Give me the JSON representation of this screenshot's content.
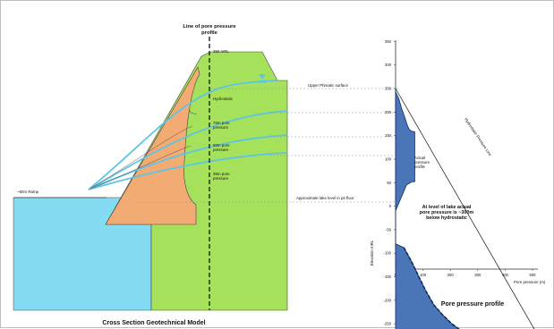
{
  "cross_section": {
    "title": "Cross Section Geotechnical Model",
    "line_label_1": "Line of pore pressure",
    "line_label_2": "profile",
    "crest_level": "350 mRL",
    "ramp": "~60m Ramp",
    "upper_phreatic": "Upper Phreatic surface",
    "lake_level": "Approximate lake level in pit floor",
    "zones": [
      "Hydrostatic",
      "70m pore",
      "pressure",
      "50m pore",
      "pressure",
      "35m pore",
      "pressure"
    ]
  },
  "profile": {
    "title": "Pore pressure profile",
    "xlabel": "Pore pressure (m)",
    "ylabel": "Elevation mRL",
    "hydrostatic_line": "Hydrostatic Pressure Line",
    "actual_label": [
      "Actual",
      "pressure",
      "profile"
    ],
    "lake_note": [
      "At level of lake actual",
      "pore pressure is ~300m",
      "below hydrostatic"
    ]
  },
  "chart_data": {
    "type": "area",
    "title": "Pore pressure profile",
    "xlabel": "Pore pressure (m)",
    "ylabel": "Elevation mRL",
    "xlim": [
      0,
      500
    ],
    "ylim": [
      -275,
      375
    ],
    "x_ticks": [
      0,
      100,
      200,
      300,
      400,
      500
    ],
    "y_ticks": [
      350,
      300,
      250,
      200,
      150,
      100,
      50,
      0,
      -50,
      -100,
      -150,
      -200,
      -250
    ],
    "series": [
      {
        "name": "Actual pressure profile",
        "points": [
          [
            0,
            250
          ],
          [
            0,
            243
          ],
          [
            12,
            228
          ],
          [
            22,
            208
          ],
          [
            34,
            188
          ],
          [
            42,
            173
          ],
          [
            48,
            165
          ],
          [
            55,
            160
          ],
          [
            70,
            158
          ],
          [
            70,
            52
          ],
          [
            60,
            52
          ],
          [
            40,
            45
          ],
          [
            18,
            15
          ],
          [
            0,
            -10
          ],
          [
            0,
            -80
          ],
          [
            30,
            -88
          ],
          [
            60,
            -120
          ],
          [
            85,
            -150
          ],
          [
            110,
            -180
          ],
          [
            140,
            -210
          ],
          [
            170,
            -230
          ],
          [
            205,
            -250
          ],
          [
            240,
            -265
          ],
          [
            255,
            -275
          ]
        ]
      },
      {
        "name": "Hydrostatic Pressure Line",
        "points": [
          [
            0,
            250
          ],
          [
            520,
            -275
          ]
        ]
      }
    ],
    "colors": {
      "actual": "#4a76b8",
      "actual_dark": "#0d2a5e",
      "hydrostatic": "#111111"
    }
  },
  "colors": {
    "green": "#a5e15a",
    "orange": "#f2ac73",
    "lake": "#84dcf2",
    "phreatic": "#5cc5e6",
    "frame": "#7a7a7a"
  }
}
